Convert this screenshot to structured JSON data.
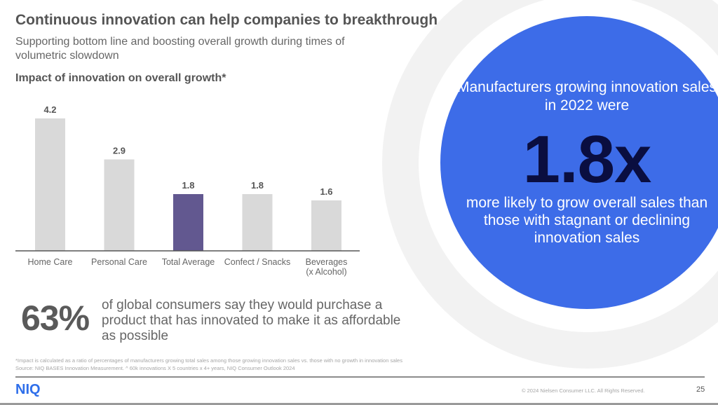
{
  "header": {
    "title": "Continuous innovation can help companies to breakthrough",
    "subtitle": "Supporting bottom line and boosting overall growth during times of volumetric slowdown"
  },
  "chart_data": {
    "type": "bar",
    "title": "Impact of innovation on overall growth*",
    "categories": [
      "Home Care",
      "Personal Care",
      "Total Average",
      "Confect / Snacks",
      "Beverages (x Alcohol)"
    ],
    "category_lines": [
      [
        "Home Care"
      ],
      [
        "Personal Care"
      ],
      [
        "Total Average"
      ],
      [
        "Confect / Snacks"
      ],
      [
        "Beverages",
        "(x Alcohol)"
      ]
    ],
    "values": [
      4.2,
      2.9,
      1.8,
      1.8,
      1.6
    ],
    "value_labels": [
      "4.2",
      "2.9",
      "1.8",
      "1.8",
      "1.6"
    ],
    "highlight_index": 2,
    "colors": {
      "default": "#d9d9d9",
      "highlight": "#625890",
      "axis": "#555555"
    },
    "xlabel": "",
    "ylabel": "",
    "ylim": [
      0,
      4.2
    ],
    "grid": false,
    "legend": "none"
  },
  "callout": {
    "lead": "Manufacturers growing innovation sales in 2022 were",
    "stat": "1.8x",
    "tail": "more likely to grow overall sales than those with stagnant or declining innovation sales",
    "colors": {
      "circle": "#3d6ce8",
      "ring": "#f2f2f2",
      "stat": "#0a0e40"
    }
  },
  "consumer_stat": {
    "value": "63%",
    "text": "of global consumers say they would purchase a product that has innovated to make it as affordable as possible"
  },
  "footnotes": {
    "line1": "*Impact is calculated as a ratio of percentages of manufacturers growing total sales among those growing innovation sales vs. those with no growth in innovation sales",
    "line2": "Source: NIQ BASES Innovation Measurement. ^ 60k innovations X 5 countries x 4+ years, NIQ Consumer Outlook 2024"
  },
  "footer": {
    "logo": "NIQ",
    "logo_color": "#2f6fea",
    "copyright": "© 2024 Nielsen Consumer LLC. All Rights Reserved.",
    "page_number": "25"
  }
}
